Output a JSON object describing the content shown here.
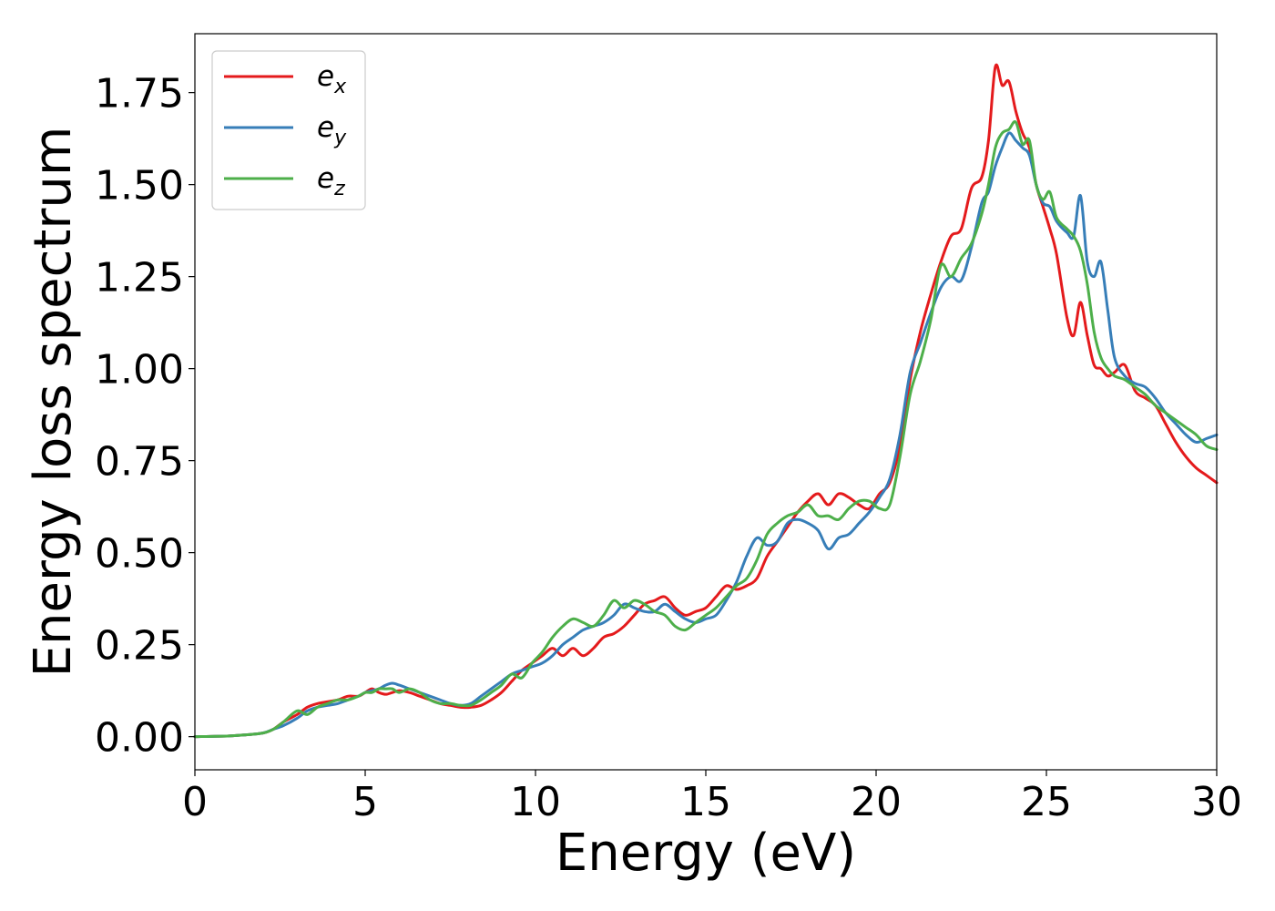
{
  "chart_data": {
    "type": "line",
    "xlabel": "Energy (eV)",
    "ylabel": "Energy loss spectrum",
    "xlim": [
      0,
      30
    ],
    "ylim": [
      -0.09,
      1.91
    ],
    "xticks": [
      0,
      5,
      10,
      15,
      20,
      25,
      30
    ],
    "xtick_labels": [
      "0",
      "5",
      "10",
      "15",
      "20",
      "25",
      "30"
    ],
    "yticks": [
      0,
      0.25,
      0.5,
      0.75,
      1.0,
      1.25,
      1.5,
      1.75
    ],
    "ytick_labels": [
      "0.00",
      "0.25",
      "0.50",
      "0.75",
      "1.00",
      "1.25",
      "1.50",
      "1.75"
    ],
    "grid": false,
    "legend_position": "top-left",
    "series": [
      {
        "name": "e_x",
        "label_base": "e",
        "label_sub": "x",
        "color": "#e41a1c",
        "x": [
          0,
          1,
          1.5,
          2,
          2.3,
          2.6,
          3,
          3.3,
          3.6,
          3.9,
          4.2,
          4.5,
          4.8,
          5.0,
          5.2,
          5.4,
          5.6,
          5.8,
          6.0,
          6.3,
          6.6,
          6.9,
          7.2,
          7.5,
          7.8,
          8.1,
          8.4,
          8.7,
          9.0,
          9.3,
          9.6,
          9.9,
          10.2,
          10.5,
          10.8,
          11.1,
          11.4,
          11.7,
          12.0,
          12.3,
          12.6,
          12.9,
          13.2,
          13.5,
          13.8,
          14.1,
          14.4,
          14.7,
          15.0,
          15.3,
          15.6,
          15.9,
          16.2,
          16.5,
          16.8,
          17.1,
          17.4,
          17.7,
          18.0,
          18.3,
          18.6,
          18.9,
          19.2,
          19.5,
          19.8,
          20.1,
          20.4,
          20.7,
          21.0,
          21.3,
          21.6,
          21.9,
          22.2,
          22.5,
          22.8,
          23.1,
          23.3,
          23.5,
          23.7,
          23.9,
          24.1,
          24.3,
          24.5,
          24.7,
          24.9,
          25.1,
          25.3,
          25.6,
          25.8,
          26.0,
          26.2,
          26.4,
          26.6,
          26.8,
          27.0,
          27.3,
          27.6,
          27.9,
          28.2,
          28.5,
          28.8,
          29.1,
          29.4,
          29.7,
          30.0
        ],
        "y": [
          0,
          0.002,
          0.005,
          0.01,
          0.02,
          0.04,
          0.06,
          0.08,
          0.09,
          0.095,
          0.1,
          0.11,
          0.11,
          0.12,
          0.13,
          0.12,
          0.115,
          0.12,
          0.125,
          0.12,
          0.11,
          0.1,
          0.09,
          0.085,
          0.08,
          0.08,
          0.085,
          0.1,
          0.12,
          0.15,
          0.18,
          0.2,
          0.22,
          0.24,
          0.22,
          0.24,
          0.22,
          0.24,
          0.27,
          0.28,
          0.3,
          0.33,
          0.36,
          0.37,
          0.38,
          0.35,
          0.33,
          0.34,
          0.35,
          0.38,
          0.41,
          0.4,
          0.41,
          0.43,
          0.49,
          0.53,
          0.57,
          0.61,
          0.64,
          0.66,
          0.63,
          0.66,
          0.65,
          0.63,
          0.62,
          0.66,
          0.69,
          0.79,
          0.97,
          1.1,
          1.2,
          1.29,
          1.36,
          1.38,
          1.49,
          1.52,
          1.62,
          1.82,
          1.77,
          1.78,
          1.7,
          1.64,
          1.6,
          1.5,
          1.44,
          1.38,
          1.31,
          1.14,
          1.09,
          1.18,
          1.09,
          1.01,
          1.0,
          0.98,
          0.99,
          1.01,
          0.94,
          0.92,
          0.9,
          0.85,
          0.8,
          0.76,
          0.73,
          0.71,
          0.69
        ]
      },
      {
        "name": "e_y",
        "label_base": "e",
        "label_sub": "y",
        "color": "#377eb8",
        "x": [
          0,
          1,
          1.5,
          2,
          2.3,
          2.6,
          3,
          3.3,
          3.6,
          3.9,
          4.2,
          4.5,
          4.8,
          5.0,
          5.2,
          5.4,
          5.6,
          5.8,
          6.0,
          6.3,
          6.6,
          6.9,
          7.2,
          7.5,
          7.8,
          8.1,
          8.4,
          8.7,
          9.0,
          9.3,
          9.6,
          9.9,
          10.2,
          10.5,
          10.8,
          11.1,
          11.4,
          11.7,
          12.0,
          12.3,
          12.6,
          12.9,
          13.2,
          13.5,
          13.8,
          14.1,
          14.4,
          14.7,
          15.0,
          15.3,
          15.6,
          15.9,
          16.2,
          16.5,
          16.8,
          17.1,
          17.4,
          17.7,
          18.0,
          18.3,
          18.6,
          18.9,
          19.2,
          19.5,
          19.8,
          20.1,
          20.4,
          20.7,
          21.0,
          21.3,
          21.6,
          21.9,
          22.2,
          22.5,
          22.8,
          23.1,
          23.3,
          23.5,
          23.7,
          23.9,
          24.1,
          24.3,
          24.5,
          24.7,
          24.9,
          25.1,
          25.3,
          25.6,
          25.8,
          26.0,
          26.2,
          26.4,
          26.6,
          26.8,
          27.0,
          27.3,
          27.6,
          27.9,
          28.2,
          28.5,
          28.8,
          29.1,
          29.4,
          29.7,
          30.0
        ],
        "y": [
          0,
          0.002,
          0.005,
          0.01,
          0.02,
          0.03,
          0.05,
          0.07,
          0.08,
          0.085,
          0.09,
          0.1,
          0.11,
          0.12,
          0.125,
          0.13,
          0.14,
          0.145,
          0.14,
          0.13,
          0.12,
          0.11,
          0.1,
          0.09,
          0.085,
          0.09,
          0.11,
          0.13,
          0.15,
          0.17,
          0.18,
          0.19,
          0.2,
          0.22,
          0.25,
          0.27,
          0.29,
          0.3,
          0.31,
          0.33,
          0.36,
          0.35,
          0.34,
          0.34,
          0.36,
          0.34,
          0.32,
          0.31,
          0.32,
          0.33,
          0.37,
          0.42,
          0.49,
          0.54,
          0.52,
          0.53,
          0.58,
          0.59,
          0.58,
          0.56,
          0.51,
          0.54,
          0.55,
          0.58,
          0.61,
          0.65,
          0.7,
          0.82,
          0.99,
          1.07,
          1.15,
          1.22,
          1.25,
          1.24,
          1.33,
          1.45,
          1.48,
          1.55,
          1.6,
          1.64,
          1.62,
          1.6,
          1.58,
          1.5,
          1.45,
          1.44,
          1.4,
          1.37,
          1.36,
          1.47,
          1.29,
          1.25,
          1.29,
          1.16,
          1.03,
          0.98,
          0.96,
          0.95,
          0.92,
          0.88,
          0.85,
          0.82,
          0.8,
          0.81,
          0.82
        ]
      },
      {
        "name": "e_z",
        "label_base": "e",
        "label_sub": "z",
        "color": "#4daf4a",
        "x": [
          0,
          1,
          1.5,
          2,
          2.3,
          2.6,
          3,
          3.3,
          3.6,
          3.9,
          4.2,
          4.5,
          4.8,
          5.0,
          5.2,
          5.4,
          5.6,
          5.8,
          6.0,
          6.3,
          6.6,
          6.9,
          7.2,
          7.5,
          7.8,
          8.1,
          8.4,
          8.7,
          9.0,
          9.3,
          9.6,
          9.9,
          10.2,
          10.5,
          10.8,
          11.1,
          11.4,
          11.7,
          12.0,
          12.3,
          12.6,
          12.9,
          13.2,
          13.5,
          13.8,
          14.1,
          14.4,
          14.7,
          15.0,
          15.3,
          15.6,
          15.9,
          16.2,
          16.5,
          16.8,
          17.1,
          17.4,
          17.7,
          18.0,
          18.3,
          18.6,
          18.9,
          19.2,
          19.5,
          19.8,
          20.1,
          20.4,
          20.7,
          21.0,
          21.3,
          21.6,
          21.9,
          22.2,
          22.5,
          22.8,
          23.1,
          23.3,
          23.5,
          23.7,
          23.9,
          24.1,
          24.3,
          24.5,
          24.7,
          24.9,
          25.1,
          25.3,
          25.6,
          25.8,
          26.0,
          26.2,
          26.4,
          26.6,
          26.8,
          27.0,
          27.3,
          27.6,
          27.9,
          28.2,
          28.5,
          28.8,
          29.1,
          29.4,
          29.7,
          30.0
        ],
        "y": [
          0,
          0.002,
          0.005,
          0.01,
          0.02,
          0.04,
          0.07,
          0.06,
          0.08,
          0.09,
          0.1,
          0.1,
          0.11,
          0.12,
          0.12,
          0.13,
          0.13,
          0.13,
          0.12,
          0.13,
          0.12,
          0.1,
          0.09,
          0.09,
          0.085,
          0.085,
          0.1,
          0.12,
          0.14,
          0.17,
          0.16,
          0.2,
          0.23,
          0.27,
          0.3,
          0.32,
          0.31,
          0.3,
          0.33,
          0.37,
          0.35,
          0.37,
          0.36,
          0.34,
          0.33,
          0.3,
          0.29,
          0.31,
          0.33,
          0.35,
          0.38,
          0.41,
          0.43,
          0.48,
          0.55,
          0.58,
          0.6,
          0.61,
          0.63,
          0.6,
          0.6,
          0.59,
          0.62,
          0.64,
          0.64,
          0.62,
          0.63,
          0.76,
          0.93,
          1.02,
          1.13,
          1.28,
          1.25,
          1.3,
          1.34,
          1.42,
          1.5,
          1.6,
          1.64,
          1.65,
          1.67,
          1.61,
          1.62,
          1.5,
          1.46,
          1.48,
          1.41,
          1.38,
          1.36,
          1.32,
          1.23,
          1.1,
          1.03,
          1.0,
          0.98,
          0.97,
          0.95,
          0.93,
          0.9,
          0.88,
          0.86,
          0.84,
          0.82,
          0.79,
          0.78
        ]
      }
    ]
  }
}
